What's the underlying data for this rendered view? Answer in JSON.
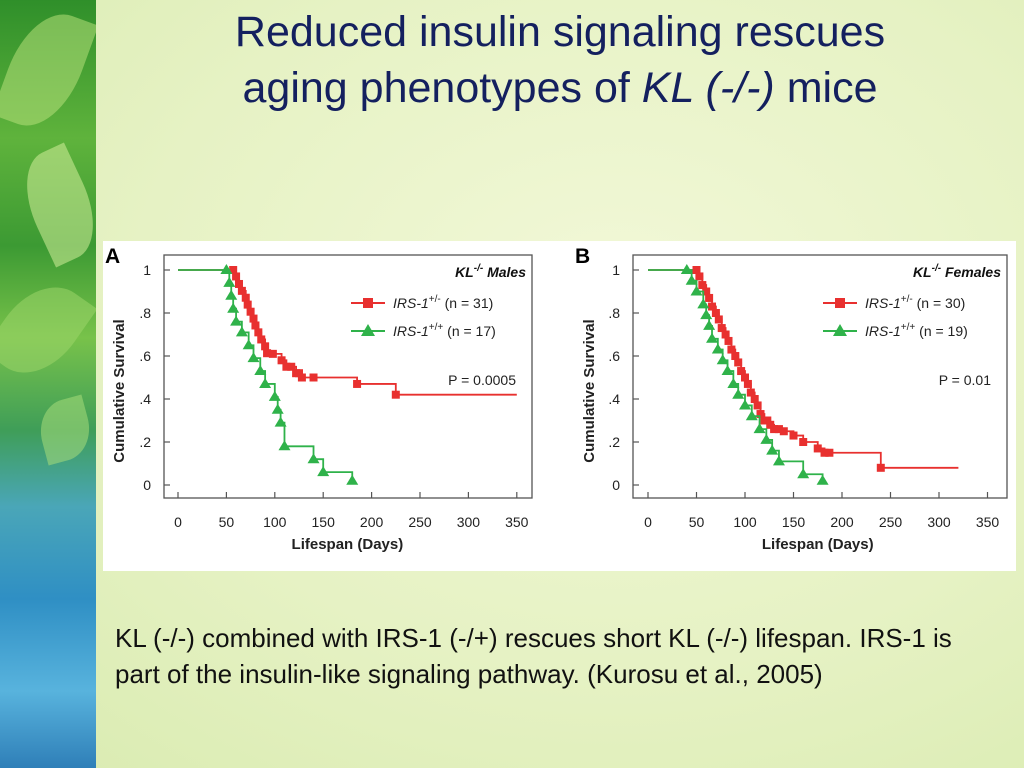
{
  "slide": {
    "title_line1": "Reduced insulin signaling rescues",
    "title_line2_pre": "aging phenotypes of ",
    "title_line2_italic": "KL (-/-)",
    "title_line2_post": " mice",
    "caption": "KL (-/-) combined with IRS-1 (-/+) rescues short KL (-/-) lifespan.  IRS-1 is part of the insulin-like signaling pathway.  (Kurosu et al., 2005)"
  },
  "colors": {
    "het": "#e8302f",
    "wt": "#2fb24a",
    "title": "#14205f"
  },
  "chart_data": [
    {
      "type": "line",
      "panel_label": "A",
      "title": "KL-/- Males",
      "xlabel": "Lifespan (Days)",
      "ylabel": "Cumulative Survival",
      "xlim": [
        0,
        350
      ],
      "ylim": [
        0,
        1
      ],
      "xticks": [
        "0",
        "50",
        "100",
        "150",
        "200",
        "250",
        "300",
        "350"
      ],
      "yticks": [
        "0",
        ".2",
        ".4",
        ".6",
        ".8",
        "1"
      ],
      "pvalue": "P = 0.0005",
      "legend_position": "top-right",
      "series": [
        {
          "name": "IRS-1+/- (n = 31)",
          "marker": "square",
          "x": [
            0,
            57,
            60,
            63,
            66,
            70,
            72,
            75,
            78,
            80,
            83,
            86,
            90,
            92,
            98,
            107,
            112,
            117,
            122,
            125,
            128,
            140,
            185,
            225,
            350
          ],
          "y": [
            1,
            1,
            0.97,
            0.935,
            0.903,
            0.871,
            0.839,
            0.806,
            0.774,
            0.742,
            0.71,
            0.677,
            0.645,
            0.613,
            0.61,
            0.58,
            0.55,
            0.55,
            0.52,
            0.52,
            0.5,
            0.5,
            0.47,
            0.42,
            0.42
          ]
        },
        {
          "name": "IRS-1+/+ (n = 17)",
          "marker": "triangle",
          "x": [
            0,
            50,
            53,
            55,
            57,
            60,
            66,
            73,
            78,
            85,
            90,
            100,
            103,
            106,
            110,
            140,
            150,
            180
          ],
          "y": [
            1,
            1,
            0.94,
            0.88,
            0.82,
            0.76,
            0.71,
            0.65,
            0.59,
            0.53,
            0.47,
            0.41,
            0.35,
            0.29,
            0.18,
            0.12,
            0.06,
            0.02
          ]
        }
      ]
    },
    {
      "type": "line",
      "panel_label": "B",
      "title": "KL-/- Females",
      "xlabel": "Lifespan (Days)",
      "ylabel": "Cumulative Survival",
      "xlim": [
        0,
        350
      ],
      "ylim": [
        0,
        1
      ],
      "xticks": [
        "0",
        "50",
        "100",
        "150",
        "200",
        "250",
        "300",
        "350"
      ],
      "yticks": [
        "0",
        ".2",
        ".4",
        ".6",
        ".8",
        "1"
      ],
      "pvalue": "P = 0.01",
      "legend_position": "top-right",
      "series": [
        {
          "name": "IRS-1+/- (n = 30)",
          "marker": "square",
          "x": [
            0,
            50,
            53,
            56,
            60,
            63,
            66,
            70,
            73,
            76,
            80,
            83,
            86,
            90,
            93,
            96,
            100,
            103,
            106,
            110,
            113,
            116,
            120,
            123,
            126,
            130,
            135,
            140,
            150,
            160,
            175,
            182,
            187,
            240,
            320
          ],
          "y": [
            1,
            1,
            0.97,
            0.93,
            0.9,
            0.87,
            0.83,
            0.8,
            0.77,
            0.73,
            0.7,
            0.67,
            0.63,
            0.6,
            0.57,
            0.53,
            0.5,
            0.47,
            0.43,
            0.4,
            0.37,
            0.33,
            0.3,
            0.3,
            0.28,
            0.26,
            0.26,
            0.25,
            0.23,
            0.2,
            0.17,
            0.15,
            0.15,
            0.08,
            0.08
          ]
        },
        {
          "name": "IRS-1+/+ (n = 19)",
          "marker": "triangle",
          "x": [
            0,
            40,
            45,
            50,
            57,
            60,
            63,
            66,
            72,
            77,
            82,
            88,
            93,
            100,
            107,
            115,
            122,
            128,
            135,
            160,
            180
          ],
          "y": [
            1,
            1,
            0.95,
            0.9,
            0.84,
            0.79,
            0.74,
            0.68,
            0.63,
            0.58,
            0.53,
            0.47,
            0.42,
            0.37,
            0.32,
            0.26,
            0.21,
            0.16,
            0.11,
            0.05,
            0.02
          ]
        }
      ]
    }
  ]
}
